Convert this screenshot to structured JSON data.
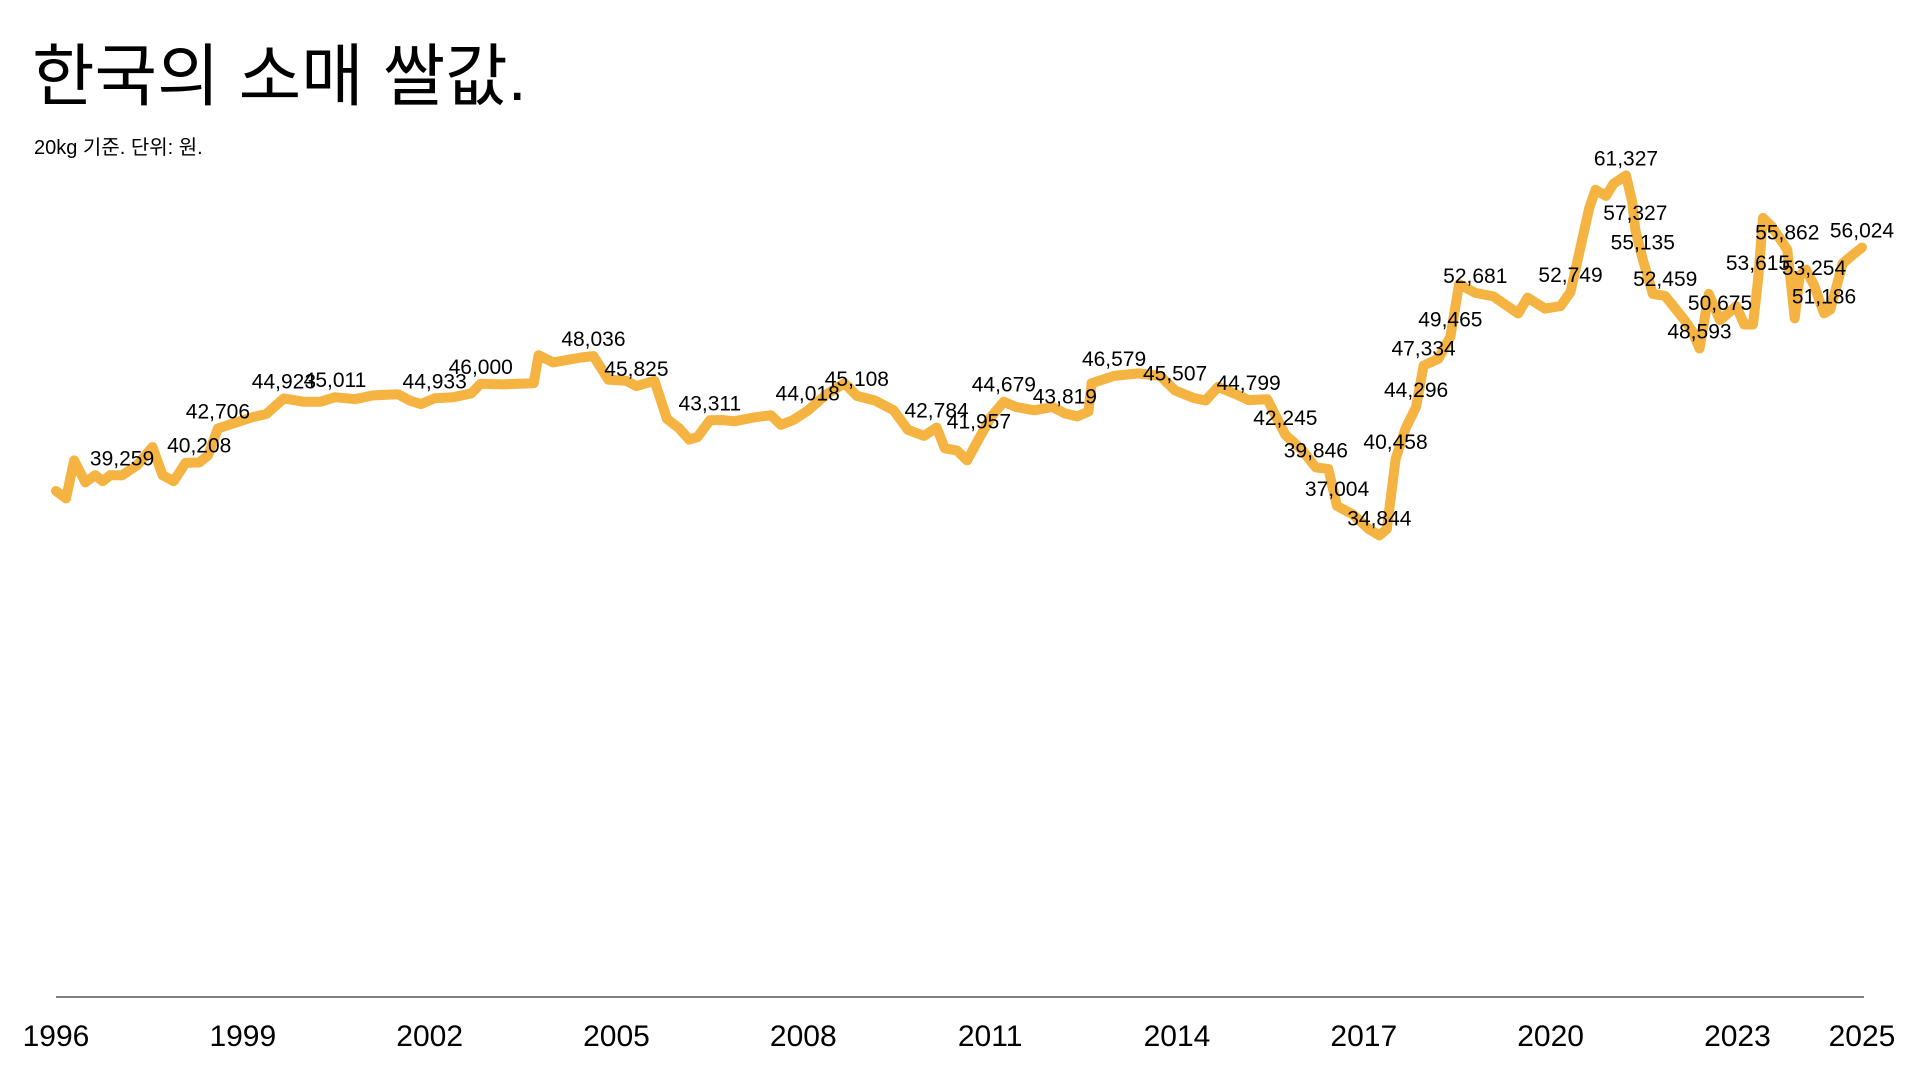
{
  "chart_data": {
    "type": "line",
    "title": "한국의 소매 쌀값.",
    "subtitle": "20kg 기준. 단위: 원.",
    "color": "#f5b342",
    "xlim": [
      1996,
      2025
    ],
    "xticks": [
      1996,
      1999,
      2002,
      2005,
      2008,
      2011,
      2014,
      2017,
      2020,
      2023,
      2025
    ],
    "ylim": [
      0,
      65000
    ],
    "grid": false,
    "x": [
      1996.0,
      1996.16,
      1996.29,
      1996.47,
      1996.63,
      1996.75,
      1996.87,
      1997.06,
      1997.3,
      1997.55,
      1997.71,
      1997.89,
      1998.08,
      1998.3,
      1998.44,
      1998.6,
      1998.83,
      1999.13,
      1999.38,
      1999.66,
      1999.97,
      2000.25,
      2000.48,
      2000.8,
      2001.09,
      2001.49,
      2001.68,
      2001.86,
      2002.08,
      2002.37,
      2002.67,
      2002.82,
      2003.16,
      2003.67,
      2003.75,
      2003.98,
      2004.43,
      2004.63,
      2004.87,
      2005.16,
      2005.32,
      2005.61,
      2005.81,
      2006.01,
      2006.17,
      2006.3,
      2006.5,
      2006.7,
      2006.89,
      2007.19,
      2007.48,
      2007.64,
      2007.84,
      2008.07,
      2008.37,
      2008.66,
      2008.86,
      2009.15,
      2009.45,
      2009.68,
      2009.94,
      2010.14,
      2010.27,
      2010.47,
      2010.63,
      2010.82,
      2011.02,
      2011.22,
      2011.41,
      2011.71,
      2012.0,
      2012.2,
      2012.4,
      2012.58,
      2012.63,
      2012.99,
      2013.38,
      2013.73,
      2013.97,
      2014.27,
      2014.46,
      2014.66,
      2014.95,
      2015.15,
      2015.45,
      2015.74,
      2016.0,
      2016.23,
      2016.43,
      2016.57,
      2016.82,
      2017.08,
      2017.25,
      2017.37,
      2017.51,
      2017.67,
      2017.84,
      2017.96,
      2018.2,
      2018.39,
      2018.53,
      2018.79,
      2019.08,
      2019.48,
      2019.63,
      2019.91,
      2020.16,
      2020.32,
      2020.62,
      2020.72,
      2020.89,
      2021.01,
      2021.21,
      2021.31,
      2021.36,
      2021.48,
      2021.64,
      2021.84,
      2022.13,
      2022.27,
      2022.39,
      2022.54,
      2022.72,
      2022.98,
      2023.11,
      2023.25,
      2023.33,
      2023.41,
      2023.55,
      2023.8,
      2023.92,
      2024.0,
      2024.1,
      2024.23,
      2024.39,
      2024.49,
      2024.69,
      2024.88,
      2025.0
    ],
    "values": [
      38108,
      37568,
      40360,
      38739,
      39279,
      38829,
      39279,
      39259,
      40000,
      41350,
      39279,
      38829,
      40180,
      40208,
      40720,
      42706,
      43060,
      43510,
      43780,
      44923,
      44680,
      44680,
      45011,
      44860,
      45140,
      45230,
      44770,
      44500,
      44933,
      45000,
      45300,
      46000,
      45950,
      46040,
      48100,
      47570,
      47930,
      48036,
      46300,
      46220,
      45825,
      46220,
      43420,
      42700,
      41890,
      42070,
      43311,
      43330,
      43240,
      43510,
      43690,
      42970,
      43330,
      44018,
      45220,
      46040,
      45108,
      44770,
      44050,
      42610,
      42160,
      42784,
      41260,
      41080,
      40360,
      41957,
      43600,
      44679,
      44300,
      44050,
      44300,
      43819,
      43600,
      43960,
      46040,
      46579,
      46760,
      46580,
      45507,
      44950,
      44770,
      45770,
      45230,
      44799,
      44860,
      42245,
      41170,
      39846,
      39730,
      37004,
      36400,
      35310,
      34844,
      35310,
      40458,
      42700,
      44296,
      47334,
      47840,
      49465,
      53330,
      52681,
      52430,
      51170,
      52340,
      51530,
      51710,
      52749,
      58920,
      60270,
      59820,
      60720,
      61327,
      59370,
      57327,
      55135,
      52610,
      52459,
      50800,
      49900,
      48593,
      52610,
      50675,
      51710,
      50360,
      50360,
      53615,
      58200,
      57570,
      55862,
      50810,
      53960,
      54400,
      53254,
      51186,
      51440,
      54860,
      55590,
      56024
    ],
    "value_labels": [
      null,
      null,
      null,
      null,
      null,
      null,
      null,
      "39,259",
      null,
      null,
      null,
      null,
      null,
      "40,208",
      null,
      "42,706",
      null,
      null,
      null,
      "44,923",
      null,
      null,
      "45,011",
      null,
      null,
      null,
      null,
      null,
      "44,933",
      null,
      null,
      "46,000",
      null,
      null,
      null,
      null,
      null,
      "48,036",
      null,
      null,
      "45,825",
      null,
      null,
      null,
      null,
      null,
      "43,311",
      null,
      null,
      null,
      null,
      null,
      null,
      "44,018",
      null,
      null,
      "45,108",
      null,
      null,
      null,
      null,
      "42,784",
      null,
      null,
      null,
      "41,957",
      null,
      "44,679",
      null,
      null,
      null,
      "43,819",
      null,
      null,
      null,
      "46,579",
      null,
      null,
      "45,507",
      null,
      null,
      null,
      null,
      "44,799",
      null,
      "42,245",
      null,
      "39,846",
      null,
      "37,004",
      null,
      null,
      "34,844",
      null,
      "40,458",
      null,
      "44,296",
      "47,334",
      null,
      "49,465",
      null,
      "52,681",
      null,
      null,
      null,
      null,
      null,
      "52,749",
      null,
      null,
      null,
      null,
      "61,327",
      null,
      "57,327",
      "55,135",
      null,
      "52,459",
      null,
      null,
      "48,593",
      null,
      "50,675",
      null,
      null,
      null,
      "53,615",
      null,
      null,
      "55,862",
      null,
      null,
      null,
      "53,254",
      "51,186",
      null,
      null,
      null,
      "56,024"
    ]
  }
}
